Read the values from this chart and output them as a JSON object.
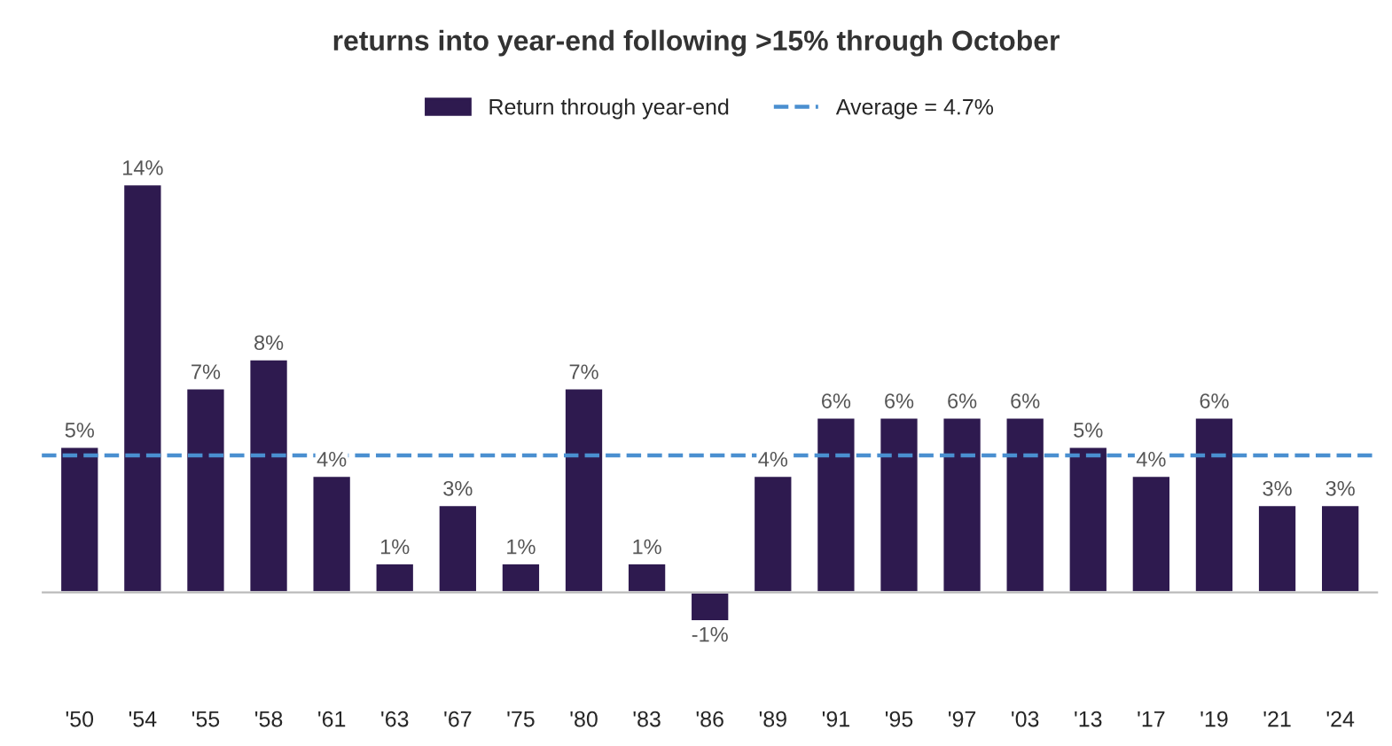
{
  "chart_data": {
    "type": "bar",
    "title": "returns into year-end following >15% through October",
    "categories": [
      "'50",
      "'54",
      "'55",
      "'58",
      "'61",
      "'63",
      "'67",
      "'75",
      "'80",
      "'83",
      "'86",
      "'89",
      "'91",
      "'95",
      "'97",
      "'03",
      "'13",
      "'17",
      "'19",
      "'21",
      "'24"
    ],
    "series": [
      {
        "name": "Return through year-end",
        "color": "#2e1a4f",
        "values": [
          5,
          14,
          7,
          8,
          4,
          1,
          3,
          1,
          7,
          1,
          -1,
          4,
          6,
          6,
          6,
          6,
          5,
          4,
          6,
          3,
          3
        ],
        "value_labels": [
          "5%",
          "14%",
          "7%",
          "8%",
          "4%",
          "1%",
          "3%",
          "1%",
          "7%",
          "1%",
          "-1%",
          "4%",
          "6%",
          "6%",
          "6%",
          "6%",
          "5%",
          "4%",
          "6%",
          "3%",
          "3%"
        ]
      }
    ],
    "ref_lines": [
      {
        "axis": "y",
        "value": 4.7,
        "label": "Average = 4.7%",
        "color": "#4a8fd0",
        "line_style": "dashed"
      }
    ],
    "legend": "top",
    "grid": false
  }
}
